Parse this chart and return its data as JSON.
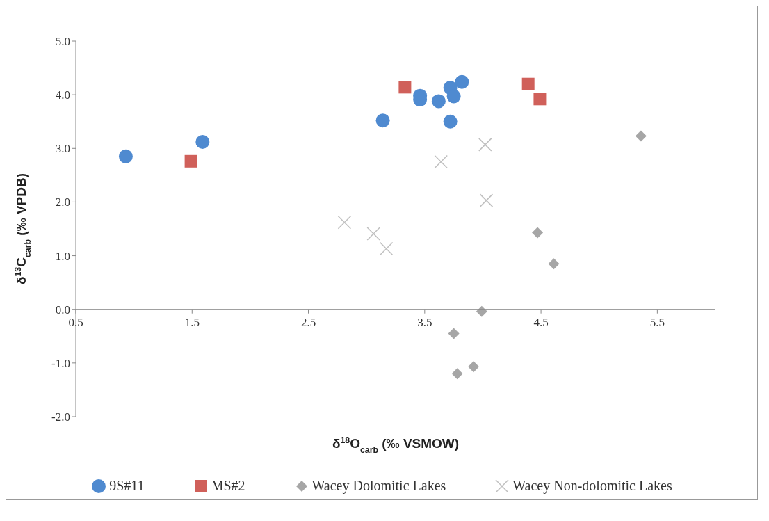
{
  "chart_data": {
    "type": "scatter",
    "xlabel": "δ$^{18}$O$_{carb}$  (‰ VSMOW)",
    "ylabel": "δ$^{13}$C$_{carb}$  (‰ VPDB)",
    "xlim": [
      0.5,
      6.0
    ],
    "xticks": [
      0.5,
      1.5,
      2.5,
      3.5,
      4.5,
      5.5
    ],
    "ylim": [
      -2,
      5
    ],
    "yticks": [
      {
        "value": -2,
        "label": "-2.0"
      },
      {
        "value": -1,
        "label": "-1.0"
      },
      {
        "value": 0,
        "label": "0.0"
      },
      {
        "value": 1,
        "label": "1.0"
      },
      {
        "value": 2,
        "label": "2.0"
      },
      {
        "value": 3,
        "label": "3.0"
      },
      {
        "value": 4,
        "label": "4.0"
      },
      {
        "value": 5,
        "label": "5.0"
      }
    ],
    "legend": "bottom",
    "series": [
      {
        "name": "9S#11",
        "color": "#4f8ad0",
        "marker": "circle",
        "x": [
          0.93,
          1.59,
          3.14,
          3.46,
          3.46,
          3.62,
          3.72,
          3.75,
          3.72,
          3.82
        ],
        "values": [
          2.85,
          3.12,
          3.52,
          3.98,
          3.91,
          3.88,
          4.13,
          3.97,
          3.5,
          4.24
        ]
      },
      {
        "name": "MS#2",
        "color": "#d0605a",
        "marker": "square",
        "x": [
          1.49,
          3.33,
          4.39,
          4.49
        ],
        "values": [
          2.76,
          4.14,
          4.2,
          3.92
        ]
      },
      {
        "name": "Wacey Dolomitic Lakes",
        "color": "#a6a6a6",
        "marker": "diamond",
        "x": [
          5.36,
          4.47,
          4.61,
          3.99,
          3.75,
          3.78,
          3.92
        ],
        "values": [
          3.23,
          1.43,
          0.85,
          -0.04,
          -0.45,
          -1.2,
          -1.07
        ]
      },
      {
        "name": "Wacey Non-dolomitic Lakes",
        "color": "#bfbfbf",
        "marker": "cross",
        "x": [
          2.81,
          3.06,
          3.17,
          3.64,
          4.02,
          4.03
        ],
        "values": [
          1.62,
          1.41,
          1.13,
          2.75,
          3.07,
          2.03
        ]
      }
    ]
  }
}
